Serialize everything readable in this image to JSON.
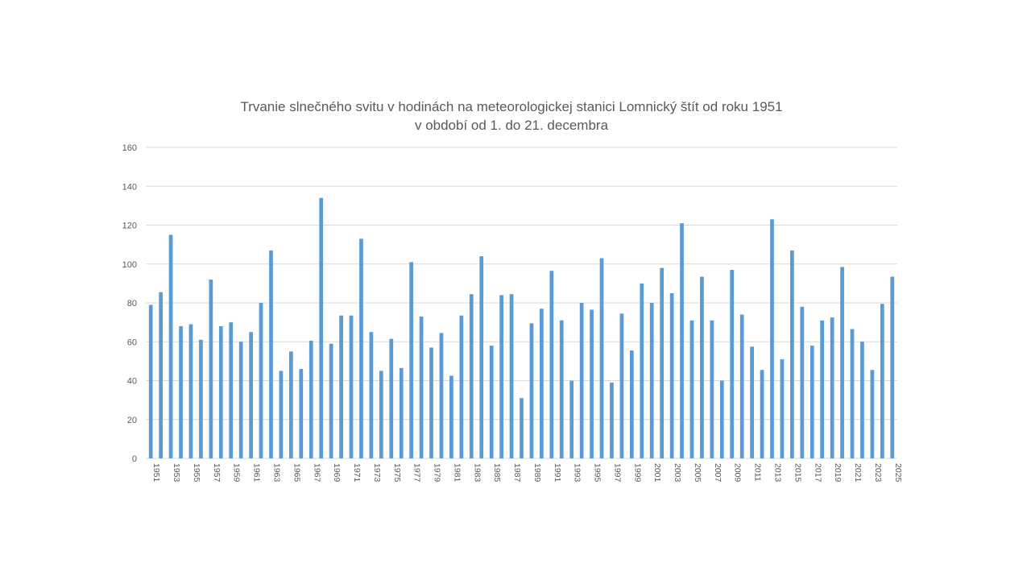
{
  "chart_data": {
    "type": "bar",
    "title": "Trvanie slnečného svitu v hodinách na meteorologickej stanici Lomnický štít od roku 1951",
    "subtitle": "v období od 1. do 21. decembra",
    "xlabel": "",
    "ylabel": "",
    "ylim": [
      0,
      160
    ],
    "yticks": [
      0,
      20,
      40,
      60,
      80,
      100,
      120,
      140,
      160
    ],
    "grid": true,
    "legend": "none",
    "bar_color": "#5b9bd5",
    "grid_color": "#d9d9d9",
    "categories": [
      1951,
      1952,
      1953,
      1954,
      1955,
      1956,
      1957,
      1958,
      1959,
      1960,
      1961,
      1962,
      1963,
      1964,
      1965,
      1966,
      1967,
      1968,
      1969,
      1970,
      1971,
      1972,
      1973,
      1974,
      1975,
      1976,
      1977,
      1978,
      1979,
      1980,
      1981,
      1982,
      1983,
      1984,
      1985,
      1986,
      1987,
      1988,
      1989,
      1990,
      1991,
      1992,
      1993,
      1994,
      1995,
      1996,
      1997,
      1998,
      1999,
      2000,
      2001,
      2002,
      2003,
      2004,
      2005,
      2006,
      2007,
      2008,
      2009,
      2010,
      2011,
      2012,
      2013,
      2014,
      2015,
      2016,
      2017,
      2018,
      2019,
      2020,
      2021,
      2022,
      2023,
      2024,
      2025
    ],
    "tick_labels": [
      "1951",
      "1953",
      "1955",
      "1957",
      "1959",
      "1961",
      "1963",
      "1965",
      "1967",
      "1969",
      "1971",
      "1973",
      "1975",
      "1977",
      "1979",
      "1981",
      "1983",
      "1985",
      "1987",
      "1989",
      "1991",
      "1993",
      "1995",
      "1997",
      "1999",
      "2001",
      "2003",
      "2005",
      "2007",
      "2009",
      "2011",
      "2013",
      "2015",
      "2017",
      "2019",
      "2021",
      "2023",
      "2025"
    ],
    "values": [
      79,
      85.5,
      115,
      68,
      69,
      61,
      92,
      68,
      70,
      60,
      65,
      80,
      107,
      45,
      55,
      46,
      60.5,
      134,
      59,
      73.5,
      73.5,
      113,
      65,
      45,
      61.5,
      46.5,
      101,
      73,
      57,
      64.5,
      42.5,
      73.5,
      84.5,
      104,
      58,
      84,
      84.5,
      31,
      69.5,
      77,
      96.5,
      71,
      40,
      80,
      76.5,
      103,
      39,
      74.5,
      55.5,
      90,
      80,
      98,
      85,
      121,
      71,
      93.5,
      71,
      40,
      97,
      74,
      57.5,
      45.5,
      123,
      51,
      107,
      78,
      58,
      71,
      72.5,
      98.5,
      66.5,
      60,
      45.5,
      79.5,
      93.5
    ]
  }
}
